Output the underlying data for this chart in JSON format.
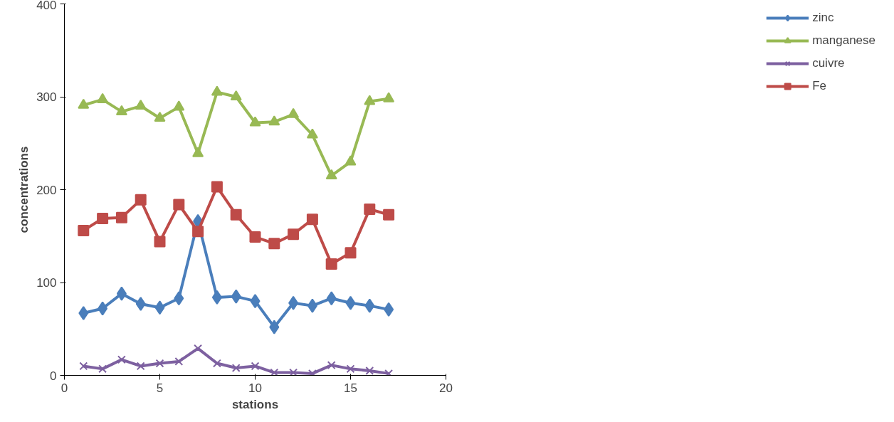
{
  "chart_data": {
    "type": "line",
    "xlabel": "stations",
    "ylabel": "concentrations",
    "x": [
      1,
      2,
      3,
      4,
      5,
      6,
      7,
      8,
      9,
      10,
      11,
      12,
      13,
      14,
      15,
      16,
      17
    ],
    "xlim": [
      0,
      20
    ],
    "xticks": [
      0,
      5,
      10,
      15,
      20
    ],
    "ylim": [
      0,
      400
    ],
    "yticks": [
      0,
      100,
      200,
      300,
      400
    ],
    "grid": false,
    "legend": "right",
    "series": [
      {
        "name": "zinc",
        "color": "#4a7ebb",
        "marker": "diamond",
        "values": [
          67,
          72,
          88,
          77,
          73,
          83,
          166,
          84,
          85,
          80,
          52,
          78,
          75,
          83,
          78,
          75,
          71
        ]
      },
      {
        "name": "manganese",
        "color": "#98b954",
        "marker": "triangle",
        "values": [
          291,
          297,
          284,
          290,
          277,
          289,
          239,
          305,
          300,
          272,
          273,
          281,
          259,
          215,
          230,
          295,
          298
        ]
      },
      {
        "name": "cuivre",
        "color": "#7d60a0",
        "marker": "cross",
        "values": [
          10,
          7,
          17,
          10,
          13,
          15,
          29,
          13,
          8,
          10,
          3,
          3,
          2,
          11,
          7,
          5,
          2
        ]
      },
      {
        "name": "Fe",
        "color": "#be4b48",
        "marker": "square",
        "values": [
          156,
          169,
          170,
          189,
          144,
          184,
          155,
          203,
          173,
          149,
          142,
          152,
          168,
          120,
          132,
          179,
          173
        ]
      }
    ]
  }
}
